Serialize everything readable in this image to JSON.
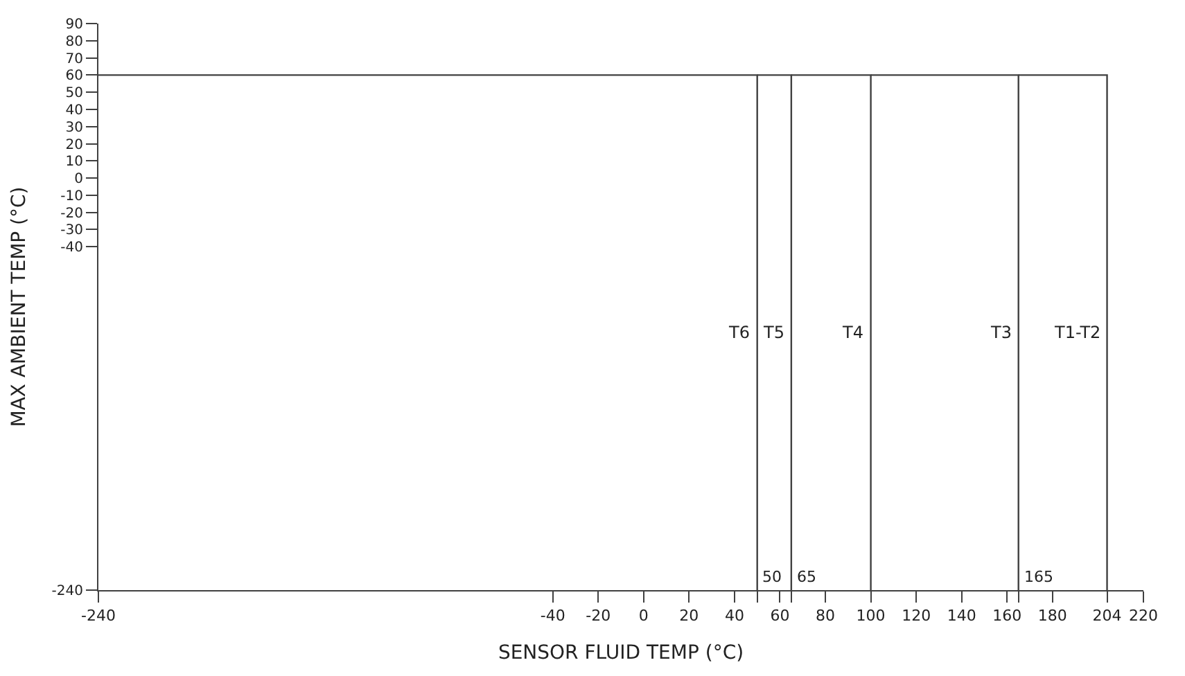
{
  "chart_data": {
    "type": "line",
    "xlabel": "SENSOR FLUID TEMP (°C)",
    "ylabel": "MAX AMBIENT TEMP (°C)",
    "series": [
      {
        "name": "T6",
        "color": "#404040",
        "x": [
          -240,
          50,
          50
        ],
        "values": [
          60,
          60,
          -240
        ]
      },
      {
        "name": "T5",
        "color": "#404040",
        "x": [
          50,
          65,
          65
        ],
        "values": [
          60,
          60,
          -240
        ]
      },
      {
        "name": "T4",
        "color": "#404040",
        "x": [
          65,
          100,
          100
        ],
        "values": [
          60,
          60,
          -240
        ]
      },
      {
        "name": "T3",
        "color": "#404040",
        "x": [
          100,
          165,
          165
        ],
        "values": [
          60,
          60,
          -240
        ]
      },
      {
        "name": "T1-T2",
        "color": "#404040",
        "x": [
          165,
          204,
          204
        ],
        "values": [
          60,
          60,
          -240
        ]
      }
    ],
    "annotations": [
      {
        "text": "50",
        "x": 50,
        "y": -240
      },
      {
        "text": "65",
        "x": 65,
        "y": -240
      },
      {
        "text": "165",
        "x": 165,
        "y": -240
      }
    ],
    "xlim": [
      -240,
      220
    ],
    "ylim": [
      -240,
      90
    ],
    "xticks": [
      -240,
      -40,
      -20,
      0,
      20,
      40,
      {
        "value": 50,
        "label": null
      },
      60,
      {
        "value": 65,
        "label": null
      },
      80,
      100,
      120,
      140,
      160,
      {
        "value": 165,
        "label": null
      },
      180,
      204,
      220
    ],
    "yticks": [
      -240,
      -40,
      -30,
      -20,
      -10,
      0,
      10,
      20,
      30,
      40,
      50,
      60,
      70,
      80,
      90
    ],
    "legend": false,
    "marker": "none",
    "line_style": "solid"
  }
}
